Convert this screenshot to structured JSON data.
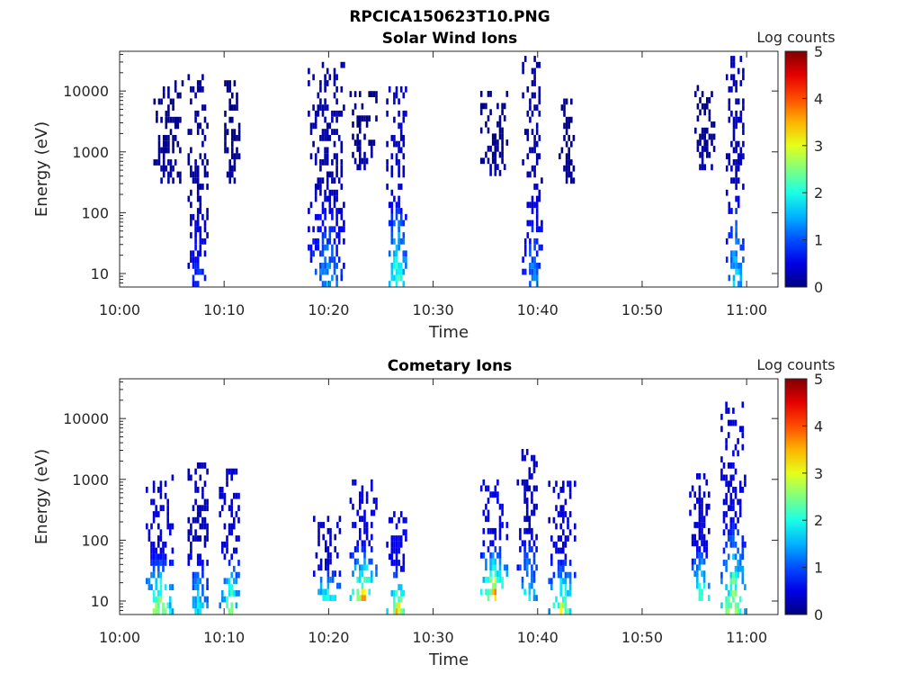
{
  "figure": {
    "title": "RPCICA150623T10.PNG"
  },
  "chart_data": [
    {
      "type": "heatmap",
      "title": "Solar Wind Ions",
      "xlabel": "Time",
      "ylabel": "Energy (eV)",
      "x_scale": "time",
      "y_scale": "log",
      "xlim": [
        "10:00",
        "11:03"
      ],
      "ylim": [
        6,
        45000
      ],
      "x_ticks": [
        "10:00",
        "10:10",
        "10:20",
        "10:30",
        "10:40",
        "10:50",
        "11:00"
      ],
      "y_ticks": [
        "10",
        "100",
        "1000",
        "10000"
      ],
      "colorbar": {
        "label": "Log counts",
        "range": [
          0,
          5
        ],
        "ticks": [
          "0",
          "1",
          "2",
          "3",
          "4",
          "5"
        ],
        "colormap": "jet"
      },
      "grid": false,
      "bursts": [
        {
          "t_start": "10:03:00",
          "t_end": "10:06:00",
          "e_min": 300,
          "e_max": 15000,
          "peak_log_counts": 0.3
        },
        {
          "t_start": "10:06:30",
          "t_end": "10:08:30",
          "e_min": 6,
          "e_max": 18000,
          "peak_log_counts": 1.1
        },
        {
          "t_start": "10:10:00",
          "t_end": "10:11:30",
          "e_min": 300,
          "e_max": 14000,
          "peak_log_counts": 0.2
        },
        {
          "t_start": "10:18:00",
          "t_end": "10:21:30",
          "e_min": 6,
          "e_max": 30000,
          "peak_log_counts": 1.6
        },
        {
          "t_start": "10:22:00",
          "t_end": "10:24:30",
          "e_min": 500,
          "e_max": 9000,
          "peak_log_counts": 0.3
        },
        {
          "t_start": "10:25:30",
          "t_end": "10:27:30",
          "e_min": 6,
          "e_max": 15000,
          "peak_log_counts": 2.6
        },
        {
          "t_start": "10:34:30",
          "t_end": "10:37:00",
          "e_min": 400,
          "e_max": 10000,
          "peak_log_counts": 0.3
        },
        {
          "t_start": "10:38:30",
          "t_end": "10:40:30",
          "e_min": 6,
          "e_max": 35000,
          "peak_log_counts": 1.5
        },
        {
          "t_start": "10:42:00",
          "t_end": "10:43:30",
          "e_min": 300,
          "e_max": 7000,
          "peak_log_counts": 0.2
        },
        {
          "t_start": "10:55:00",
          "t_end": "10:57:00",
          "e_min": 500,
          "e_max": 12000,
          "peak_log_counts": 0.3
        },
        {
          "t_start": "10:58:00",
          "t_end": "10:59:45",
          "e_min": 6,
          "e_max": 35000,
          "peak_log_counts": 2.0
        }
      ]
    },
    {
      "type": "heatmap",
      "title": "Cometary Ions",
      "xlabel": "Time",
      "ylabel": "Energy (eV)",
      "x_scale": "time",
      "y_scale": "log",
      "xlim": [
        "10:00",
        "11:03"
      ],
      "ylim": [
        6,
        45000
      ],
      "x_ticks": [
        "10:00",
        "10:10",
        "10:20",
        "10:30",
        "10:40",
        "10:50",
        "11:00"
      ],
      "y_ticks": [
        "10",
        "100",
        "1000",
        "10000"
      ],
      "colorbar": {
        "label": "Log counts",
        "range": [
          0,
          5
        ],
        "ticks": [
          "0",
          "1",
          "2",
          "3",
          "4",
          "5"
        ],
        "colormap": "jet"
      },
      "grid": false,
      "bursts": [
        {
          "t_start": "10:02:30",
          "t_end": "10:05:00",
          "e_min": 6,
          "e_max": 1000,
          "peak_log_counts": 3.3
        },
        {
          "t_start": "10:06:30",
          "t_end": "10:08:30",
          "e_min": 6,
          "e_max": 1700,
          "peak_log_counts": 2.2
        },
        {
          "t_start": "10:09:30",
          "t_end": "10:11:30",
          "e_min": 6,
          "e_max": 1200,
          "peak_log_counts": 2.9
        },
        {
          "t_start": "10:18:30",
          "t_end": "10:21:00",
          "e_min": 10,
          "e_max": 200,
          "peak_log_counts": 2.5
        },
        {
          "t_start": "10:22:00",
          "t_end": "10:24:30",
          "e_min": 10,
          "e_max": 1000,
          "peak_log_counts": 3.6
        },
        {
          "t_start": "10:25:30",
          "t_end": "10:27:30",
          "e_min": 6,
          "e_max": 300,
          "peak_log_counts": 3.6
        },
        {
          "t_start": "10:34:30",
          "t_end": "10:37:00",
          "e_min": 10,
          "e_max": 1000,
          "peak_log_counts": 3.9
        },
        {
          "t_start": "10:38:00",
          "t_end": "10:40:00",
          "e_min": 10,
          "e_max": 3000,
          "peak_log_counts": 2.3
        },
        {
          "t_start": "10:41:00",
          "t_end": "10:43:30",
          "e_min": 6,
          "e_max": 800,
          "peak_log_counts": 3.1
        },
        {
          "t_start": "10:54:30",
          "t_end": "10:56:30",
          "e_min": 10,
          "e_max": 1100,
          "peak_log_counts": 2.9
        },
        {
          "t_start": "10:57:30",
          "t_end": "10:59:45",
          "e_min": 6,
          "e_max": 18000,
          "peak_log_counts": 3.3
        }
      ]
    }
  ]
}
